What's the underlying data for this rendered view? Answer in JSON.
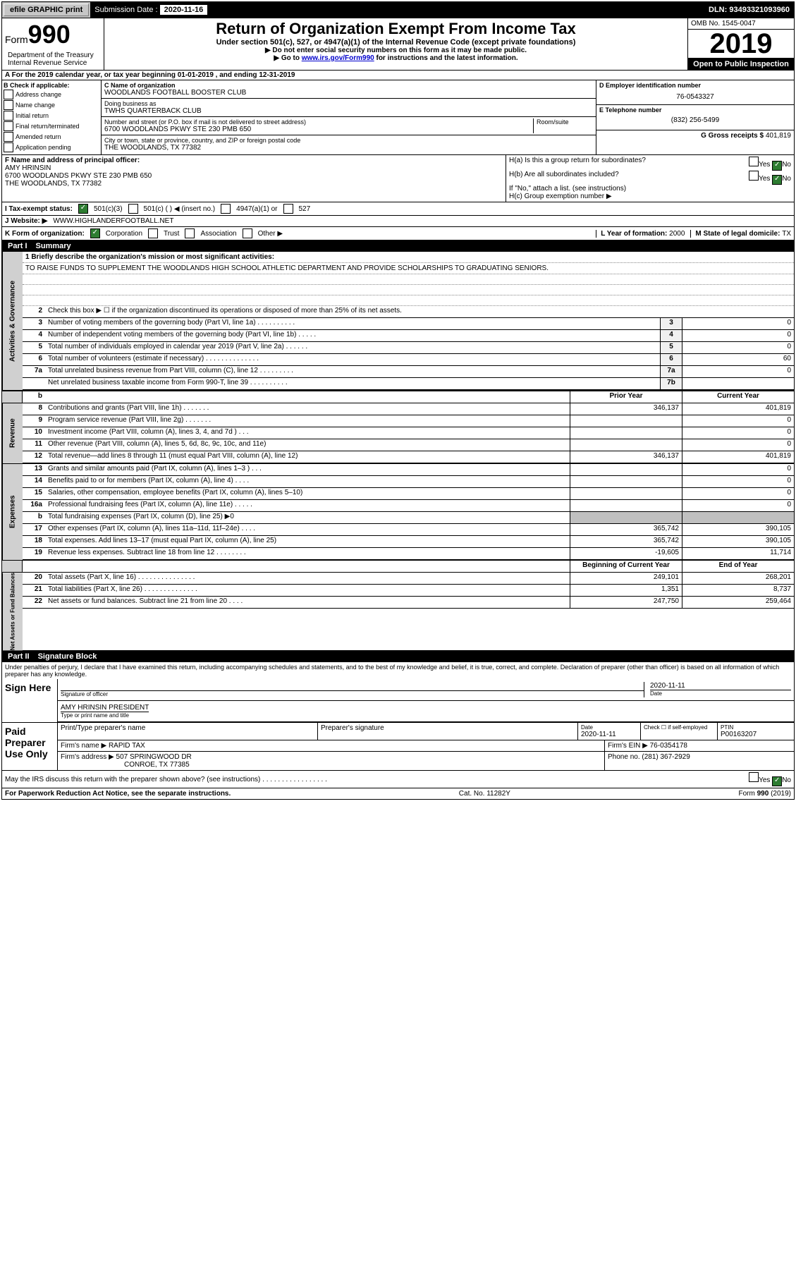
{
  "topbar": {
    "efile_label": "efile GRAPHIC print",
    "submission_label": "Submission Date : ",
    "submission_date": "2020-11-16",
    "dln_label": "DLN: ",
    "dln": "93493321093960"
  },
  "header": {
    "form_label": "Form",
    "form_number": "990",
    "dept": "Department of the Treasury\nInternal Revenue Service",
    "title": "Return of Organization Exempt From Income Tax",
    "subtitle": "Under section 501(c), 527, or 4947(a)(1) of the Internal Revenue Code (except private foundations)",
    "instr1": "▶ Do not enter social security numbers on this form as it may be made public.",
    "instr2_pre": "▶ Go to ",
    "instr2_link": "www.irs.gov/Form990",
    "instr2_post": " for instructions and the latest information.",
    "omb": "OMB No. 1545-0047",
    "year": "2019",
    "inspection": "Open to Public Inspection"
  },
  "row_a": {
    "text": "A For the 2019 calendar year, or tax year beginning 01-01-2019    , and ending 12-31-2019"
  },
  "section_b": {
    "label": "B Check if applicable:",
    "items": [
      "Address change",
      "Name change",
      "Initial return",
      "Final return/terminated",
      "Amended return",
      "Application pending"
    ]
  },
  "section_c": {
    "name_label": "C Name of organization",
    "name": "WOODLANDS FOOTBALL BOOSTER CLUB",
    "dba_label": "Doing business as",
    "dba": "TWHS QUARTERBACK CLUB",
    "addr_label": "Number and street (or P.O. box if mail is not delivered to street address)",
    "room_label": "Room/suite",
    "addr": "6700 WOODLANDS PKWY STE 230 PMB 650",
    "city_label": "City or town, state or province, country, and ZIP or foreign postal code",
    "city": "THE WOODLANDS, TX  77382"
  },
  "section_d": {
    "label": "D Employer identification number",
    "ein": "76-0543327"
  },
  "section_e": {
    "label": "E Telephone number",
    "phone": "(832) 256-5499"
  },
  "section_g": {
    "label": "G Gross receipts $ ",
    "amount": "401,819"
  },
  "section_f": {
    "label": "F  Name and address of principal officer:",
    "name": "AMY HRINSIN",
    "addr1": "6700 WOODLANDS PKWY STE 230 PMB 650",
    "addr2": "THE WOODLANDS, TX  77382"
  },
  "section_h": {
    "ha": "H(a)  Is this a group return for subordinates?",
    "hb": "H(b)  Are all subordinates included?",
    "hb_note": "If \"No,\" attach a list. (see instructions)",
    "hc": "H(c)  Group exemption number ▶",
    "yes": "Yes",
    "no": "No"
  },
  "row_i": {
    "label": "I  Tax-exempt status:",
    "opt1": "501(c)(3)",
    "opt2": "501(c) (  ) ◀ (insert no.)",
    "opt3": "4947(a)(1) or",
    "opt4": "527"
  },
  "row_j": {
    "label": "J  Website: ▶",
    "url": "WWW.HIGHLANDERFOOTBALL.NET"
  },
  "row_k": {
    "label": "K Form of organization:",
    "opts": [
      "Corporation",
      "Trust",
      "Association",
      "Other ▶"
    ]
  },
  "row_l": {
    "label": "L Year of formation: ",
    "val": "2000"
  },
  "row_m": {
    "label": "M State of legal domicile: ",
    "val": "TX"
  },
  "part1": {
    "label": "Part I",
    "title": "Summary"
  },
  "summary": {
    "section1_label": "Activities & Governance",
    "line1_label": "1  Briefly describe the organization's mission or most significant activities:",
    "line1_text": "TO RAISE FUNDS TO SUPPLEMENT THE WOODLANDS HIGH SCHOOL ATHLETIC DEPARTMENT AND PROVIDE SCHOLARSHIPS TO GRADUATING SENIORS.",
    "line2": "Check this box ▶ ☐  if the organization discontinued its operations or disposed of more than 25% of its net assets.",
    "rows_ag": [
      {
        "num": "3",
        "text": "Number of voting members of the governing body (Part VI, line 1a)  .  .  .  .  .  .  .  .  .  .",
        "box": "3",
        "val": "0"
      },
      {
        "num": "4",
        "text": "Number of independent voting members of the governing body (Part VI, line 1b)  .  .  .  .  .",
        "box": "4",
        "val": "0"
      },
      {
        "num": "5",
        "text": "Total number of individuals employed in calendar year 2019 (Part V, line 2a)  .  .  .  .  .  .",
        "box": "5",
        "val": "0"
      },
      {
        "num": "6",
        "text": "Total number of volunteers (estimate if necessary)   .  .  .  .  .  .  .  .  .  .  .  .  .  .",
        "box": "6",
        "val": "60"
      },
      {
        "num": "7a",
        "text": "Total unrelated business revenue from Part VIII, column (C), line 12  .  .  .  .  .  .  .  .  .",
        "box": "7a",
        "val": "0"
      },
      {
        "num": "",
        "text": "Net unrelated business taxable income from Form 990-T, line 39   .  .  .  .  .  .  .  .  .  .",
        "box": "7b",
        "val": ""
      }
    ],
    "col_prior": "Prior Year",
    "col_current": "Current Year",
    "section2_label": "Revenue",
    "rows_rev": [
      {
        "num": "8",
        "text": "Contributions and grants (Part VIII, line 1h)   .  .  .  .  .  .  .",
        "prior": "346,137",
        "current": "401,819"
      },
      {
        "num": "9",
        "text": "Program service revenue (Part VIII, line 2g)  .  .  .  .  .  .  .",
        "prior": "",
        "current": "0"
      },
      {
        "num": "10",
        "text": "Investment income (Part VIII, column (A), lines 3, 4, and 7d )   .  .  .",
        "prior": "",
        "current": "0"
      },
      {
        "num": "11",
        "text": "Other revenue (Part VIII, column (A), lines 5, 6d, 8c, 9c, 10c, and 11e)",
        "prior": "",
        "current": "0"
      },
      {
        "num": "12",
        "text": "Total revenue—add lines 8 through 11 (must equal Part VIII, column (A), line 12)",
        "prior": "346,137",
        "current": "401,819"
      }
    ],
    "section3_label": "Expenses",
    "rows_exp": [
      {
        "num": "13",
        "text": "Grants and similar amounts paid (Part IX, column (A), lines 1–3 )  .  .  .",
        "prior": "",
        "current": "0"
      },
      {
        "num": "14",
        "text": "Benefits paid to or for members (Part IX, column (A), line 4)   .  .  .  .",
        "prior": "",
        "current": "0"
      },
      {
        "num": "15",
        "text": "Salaries, other compensation, employee benefits (Part IX, column (A), lines 5–10)",
        "prior": "",
        "current": "0"
      },
      {
        "num": "16a",
        "text": "Professional fundraising fees (Part IX, column (A), line 11e)  .  .  .  .  .",
        "prior": "",
        "current": "0"
      },
      {
        "num": "b",
        "text": "Total fundraising expenses (Part IX, column (D), line 25) ▶0",
        "prior": "shade",
        "current": "shade"
      },
      {
        "num": "17",
        "text": "Other expenses (Part IX, column (A), lines 11a–11d, 11f–24e)  .  .  .  .",
        "prior": "365,742",
        "current": "390,105"
      },
      {
        "num": "18",
        "text": "Total expenses. Add lines 13–17 (must equal Part IX, column (A), line 25)",
        "prior": "365,742",
        "current": "390,105"
      },
      {
        "num": "19",
        "text": "Revenue less expenses. Subtract line 18 from line 12  .  .  .  .  .  .  .  .",
        "prior": "-19,605",
        "current": "11,714"
      }
    ],
    "col_begin": "Beginning of Current Year",
    "col_end": "End of Year",
    "section4_label": "Net Assets or Fund Balances",
    "rows_net": [
      {
        "num": "20",
        "text": "Total assets (Part X, line 16)  .  .  .  .  .  .  .  .  .  .  .  .  .  .  .",
        "prior": "249,101",
        "current": "268,201"
      },
      {
        "num": "21",
        "text": "Total liabilities (Part X, line 26)  .  .  .  .  .  .  .  .  .  .  .  .  .  .",
        "prior": "1,351",
        "current": "8,737"
      },
      {
        "num": "22",
        "text": "Net assets or fund balances. Subtract line 21 from line 20  .  .  .  .",
        "prior": "247,750",
        "current": "259,464"
      }
    ]
  },
  "part2": {
    "label": "Part II",
    "title": "Signature Block",
    "penalty": "Under penalties of perjury, I declare that I have examined this return, including accompanying schedules and statements, and to the best of my knowledge and belief, it is true, correct, and complete. Declaration of preparer (other than officer) is based on all information of which preparer has any knowledge."
  },
  "sign": {
    "here": "Sign Here",
    "sig_officer": "Signature of officer",
    "date_label": "Date",
    "date": "2020-11-11",
    "name": "AMY HRINSIN PRESIDENT",
    "name_label": "Type or print name and title"
  },
  "preparer": {
    "here": "Paid Preparer Use Only",
    "print_label": "Print/Type preparer's name",
    "sig_label": "Preparer's signature",
    "date_label": "Date",
    "date": "2020-11-11",
    "check_label": "Check ☐ if self-employed",
    "ptin_label": "PTIN",
    "ptin": "P00163207",
    "firm_name_label": "Firm's name    ▶ ",
    "firm_name": "RAPID TAX",
    "firm_ein_label": "Firm's EIN ▶ ",
    "firm_ein": "76-0354178",
    "firm_addr_label": "Firm's address ▶ ",
    "firm_addr1": "507 SPRINGWOOD DR",
    "firm_addr2": "CONROE, TX  77385",
    "phone_label": "Phone no. ",
    "phone": "(281) 367-2929"
  },
  "discuss": {
    "text": "May the IRS discuss this return with the preparer shown above? (see instructions)   .  .  .  .  .  .  .  .  .  .  .  .  .  .  .  .  .",
    "yes": "Yes",
    "no": "No"
  },
  "footer": {
    "left": "For Paperwork Reduction Act Notice, see the separate instructions.",
    "center": "Cat. No. 11282Y",
    "right": "Form 990 (2019)"
  },
  "colors": {
    "topbar_bg": "#c0c0c0",
    "black": "#000000",
    "link": "#0000cc",
    "check_green": "#2e7d32",
    "shade": "#c0c0c0"
  }
}
